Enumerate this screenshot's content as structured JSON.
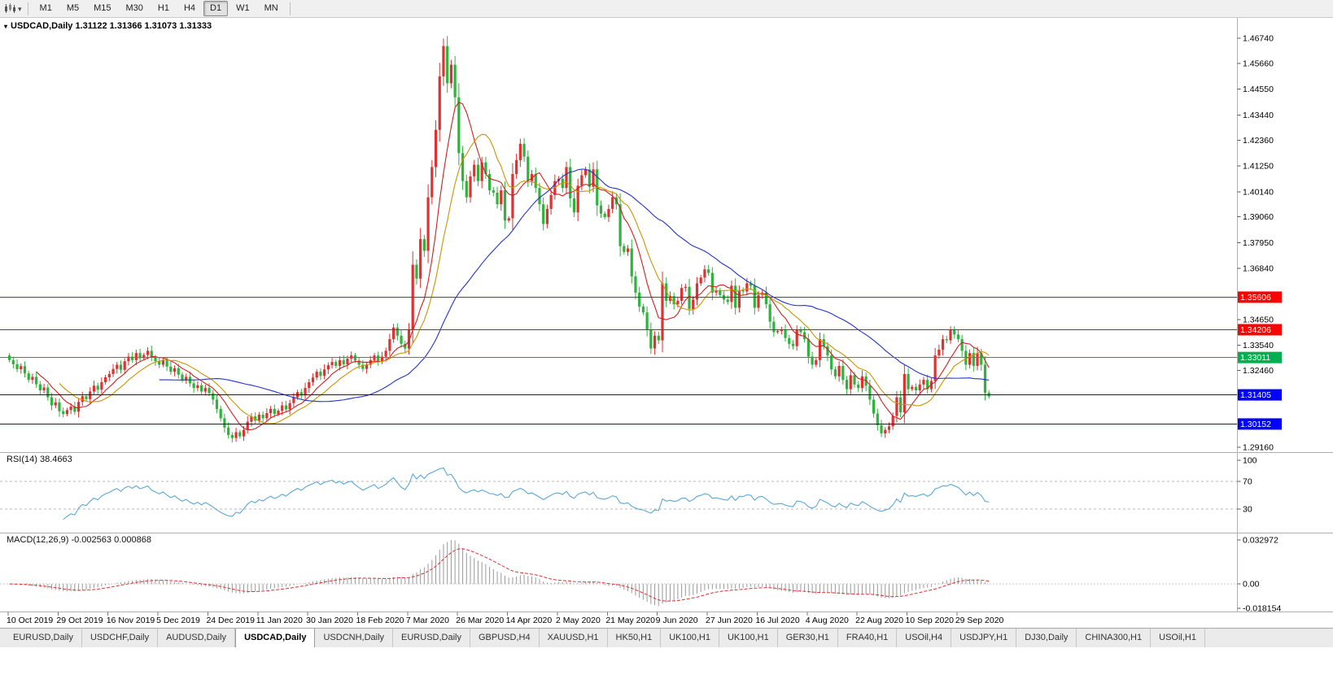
{
  "toolbar": {
    "timeframes": [
      "M1",
      "M5",
      "M15",
      "M30",
      "H1",
      "H4",
      "D1",
      "W1",
      "MN"
    ],
    "active_timeframe": "D1",
    "chart_type_icon": "candlestick-chart",
    "dropdown_icon": "chevron-down"
  },
  "chart": {
    "info_line": "USDCAD,Daily 1.31122 1.31366 1.31073 1.31333",
    "symbol": "USDCAD",
    "period": "Daily",
    "open": "1.31122",
    "high": "1.31366",
    "low": "1.31073",
    "close": "1.31333"
  },
  "chart_data": {
    "type": "candlestick",
    "title": "USDCAD,Daily",
    "x_labels": [
      "10 Oct 2019",
      "29 Oct 2019",
      "16 Nov 2019",
      "5 Dec 2019",
      "24 Dec 2019",
      "11 Jan 2020",
      "30 Jan 2020",
      "18 Feb 2020",
      "7 Mar 2020",
      "26 Mar 2020",
      "14 Apr 2020",
      "2 May 2020",
      "21 May 2020",
      "9 Jun 2020",
      "27 Jun 2020",
      "16 Jul 2020",
      "4 Aug 2020",
      "22 Aug 2020",
      "10 Sep 2020",
      "29 Sep 2020"
    ],
    "x_label_every": 13,
    "y_axis_ticks": [
      "1.46740",
      "1.45660",
      "1.44550",
      "1.43440",
      "1.42360",
      "1.41250",
      "1.40140",
      "1.39060",
      "1.37950",
      "1.36840",
      "1.34650",
      "1.33540",
      "1.32460",
      "1.29160"
    ],
    "first_open": 1.331,
    "closes": [
      1.329,
      1.3272,
      1.3251,
      1.3264,
      1.3233,
      1.3205,
      1.3218,
      1.3186,
      1.316,
      1.3172,
      1.313,
      1.3095,
      1.3108,
      1.307,
      1.3058,
      1.3075,
      1.309,
      1.3068,
      1.311,
      1.3135,
      1.3122,
      1.3155,
      1.318,
      1.3163,
      1.3195,
      1.3216,
      1.323,
      1.3252,
      1.327,
      1.3248,
      1.3285,
      1.3305,
      1.329,
      1.332,
      1.3298,
      1.3312,
      1.333,
      1.33,
      1.3285,
      1.327,
      1.3288,
      1.3262,
      1.324,
      1.3255,
      1.3228,
      1.3205,
      1.3218,
      1.319,
      1.317,
      1.3182,
      1.3155,
      1.317,
      1.3148,
      1.312,
      1.308,
      1.304,
      1.3,
      1.2968,
      1.2955,
      1.298,
      1.2962,
      1.299,
      1.3025,
      1.3048,
      1.303,
      1.3055,
      1.304,
      1.3062,
      1.308,
      1.3058,
      1.3072,
      1.3095,
      1.3078,
      1.3105,
      1.313,
      1.3152,
      1.3138,
      1.317,
      1.3195,
      1.3215,
      1.324,
      1.3222,
      1.325,
      1.3268,
      1.3282,
      1.3265,
      1.329,
      1.3272,
      1.3296,
      1.331,
      1.3288,
      1.327,
      1.3252,
      1.327,
      1.329,
      1.331,
      1.3285,
      1.3305,
      1.333,
      1.338,
      1.343,
      1.3395,
      1.336,
      1.334,
      1.342,
      1.37,
      1.364,
      1.381,
      1.376,
      1.399,
      1.412,
      1.428,
      1.451,
      1.464,
      1.448,
      1.456,
      1.442,
      1.418,
      1.406,
      1.399,
      1.408,
      1.413,
      1.406,
      1.414,
      1.409,
      1.402,
      1.401,
      1.396,
      1.402,
      1.389,
      1.39,
      1.409,
      1.415,
      1.422,
      1.4165,
      1.406,
      1.409,
      1.403,
      1.396,
      1.3875,
      1.394,
      1.4,
      1.406,
      1.407,
      1.403,
      1.412,
      1.3985,
      1.3925,
      1.404,
      1.4085,
      1.411,
      1.4035,
      1.411,
      1.3955,
      1.392,
      1.3905,
      1.394,
      1.399,
      1.396,
      1.378,
      1.3755,
      1.377,
      1.365,
      1.358,
      1.352,
      1.3495,
      1.342,
      1.334,
      1.3395,
      1.3375,
      1.362,
      1.3545,
      1.3565,
      1.353,
      1.3545,
      1.36,
      1.3605,
      1.351,
      1.355,
      1.362,
      1.3645,
      1.368,
      1.3665,
      1.358,
      1.359,
      1.357,
      1.355,
      1.354,
      1.361,
      1.3515,
      1.359,
      1.3585,
      1.362,
      1.361,
      1.3515,
      1.357,
      1.358,
      1.353,
      1.3455,
      1.341,
      1.3415,
      1.342,
      1.3385,
      1.336,
      1.335,
      1.342,
      1.341,
      1.338,
      1.3305,
      1.327,
      1.329,
      1.338,
      1.335,
      1.331,
      1.325,
      1.322,
      1.3265,
      1.3205,
      1.3165,
      1.3225,
      1.3185,
      1.317,
      1.322,
      1.318,
      1.312,
      1.306,
      1.301,
      1.2975,
      1.299,
      1.3005,
      1.305,
      1.313,
      1.3065,
      1.323,
      1.3165,
      1.3175,
      1.316,
      1.3185,
      1.3205,
      1.3165,
      1.32,
      1.331,
      1.3335,
      1.338,
      1.3375,
      1.342,
      1.34,
      1.338,
      1.333,
      1.327,
      1.332,
      1.3265,
      1.332,
      1.327,
      1.315,
      1.31333
    ],
    "up_color": "#e03030",
    "down_color": "#2eb33c",
    "moving_averages": [
      {
        "period": 8,
        "color": "#d02020"
      },
      {
        "period": 14,
        "color": "#c89600"
      },
      {
        "period": 40,
        "color": "#2233cc"
      }
    ],
    "hlines": [
      {
        "price": 1.35606,
        "label": "1.35606",
        "color": "#ff0000"
      },
      {
        "price": 1.34206,
        "label": "1.34206",
        "color": "#ff0000"
      },
      {
        "price": 1.33011,
        "label": "1.33011",
        "color": "#00b050"
      },
      {
        "price": 1.31405,
        "label": "1.31405",
        "color": "#0000ff"
      },
      {
        "price": 1.30152,
        "label": "1.30152",
        "color": "#0000ff"
      }
    ],
    "rsi": {
      "label": "RSI(14) 38.4663",
      "period": 14,
      "last": 38.4663,
      "levels": [
        "100",
        "70",
        "30"
      ],
      "color": "#5aa7d6"
    },
    "macd": {
      "label": "MACD(12,26,9) -0.002563 0.000868",
      "fast": 12,
      "slow": 26,
      "signal": 9,
      "macd_last": -0.002563,
      "signal_last": 0.000868,
      "scale_max": "0.032972",
      "scale_zero": "0.00",
      "scale_min": "-0.018154",
      "histogram_color": "#999999",
      "signal_color": "#e03030"
    }
  },
  "tabs": {
    "items": [
      "EURUSD,Daily",
      "USDCHF,Daily",
      "AUDUSD,Daily",
      "USDCAD,Daily",
      "USDCNH,Daily",
      "EURUSD,Daily",
      "GBPUSD,H4",
      "XAUUSD,H1",
      "HK50,H1",
      "UK100,H1",
      "UK100,H1",
      "GER30,H1",
      "FRA40,H1",
      "USOil,H4",
      "USDJPY,H1",
      "DJ30,Daily",
      "CHINA300,H1",
      "USOil,H1"
    ],
    "active_index": 3
  }
}
